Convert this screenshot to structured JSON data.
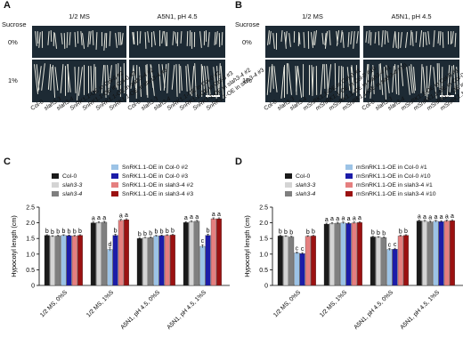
{
  "panels": {
    "A": {
      "letter": "A",
      "sucrose_label": "Sucrose",
      "col1": "1/2 MS",
      "col2": "A5N1, pH 4.5",
      "row1": "0%",
      "row2": "1%",
      "genotypes": [
        "Col-0",
        "slah3-3",
        "slah3-4",
        "SnRK1.1-OE in Col-0 #2",
        "SnRK1.1-OE in Col-0 #3",
        "SnRK1.1-OE in slah3-4 #2",
        "SnRK1.1-OE in slah3-4 #3"
      ]
    },
    "B": {
      "letter": "B",
      "sucrose_label": "Sucrose",
      "col1": "1/2 MS",
      "col2": "A5N1, pH 4.5",
      "row1": "0%",
      "row2": "1%",
      "genotypes": [
        "Col-0",
        "slah3-3",
        "slah3-4",
        "mSnRK1.1-OE in Col-0 #1",
        "mSnRK1.1-OE in Col-0 #10",
        "mSnRK1.1-OE in slah3-4 #1",
        "mSnRK1.1-OE in slah3-4 #10"
      ]
    },
    "C": {
      "letter": "C"
    },
    "D": {
      "letter": "D"
    }
  },
  "legend_C": {
    "left": [
      "Col-0",
      "slah3-3",
      "slah3-4"
    ],
    "right": [
      "SnRK1.1-OE in Col-0 #2",
      "SnRK1.1-OE in Col-0 #3",
      "SnRK1.1-OE in slah3-4 #2",
      "SnRK1.1-OE in slah3-4 #3"
    ]
  },
  "legend_D": {
    "left": [
      "Col-0",
      "slah3-3",
      "slah3-4"
    ],
    "right": [
      "mSnRK1.1-OE in Col-0 #1",
      "mSnRK1.1-OE in Col-0 #10",
      "mSnRK1.1-OE in slah3-4 #1",
      "mSnRK1.1-OE in slah3-4 #10"
    ]
  },
  "colors": [
    "#1a1a1a",
    "#d4d4d4",
    "#7f7f7f",
    "#9cc3e6",
    "#1c1ca8",
    "#e57f7f",
    "#9b1111"
  ],
  "chart_data": [
    {
      "type": "bar",
      "ylabel": "Hypocotyl length (cm)",
      "ylim": [
        0,
        2.5
      ],
      "yticks": [
        "0",
        "0.5",
        "1.0",
        "1.5",
        "2.0",
        "2.5"
      ],
      "categories": [
        "1/2 MS, 0%S",
        "1/2 MS, 1%S",
        "A5N1, pH 4.5, 0%S",
        "A5N1, pH 4.5, 1%S"
      ],
      "series": [
        {
          "name": "Col-0",
          "values": [
            1.6,
            2.0,
            1.5,
            2.01
          ]
        },
        {
          "name": "slah3-3",
          "values": [
            1.57,
            2.01,
            1.52,
            2.04
          ]
        },
        {
          "name": "slah3-4",
          "values": [
            1.58,
            2.02,
            1.53,
            2.05
          ]
        },
        {
          "name": "SnRK1.1-OE in Col-0 #2",
          "values": [
            1.6,
            1.15,
            1.58,
            1.25
          ]
        },
        {
          "name": "SnRK1.1-OE in Col-0 #3",
          "values": [
            1.59,
            1.6,
            1.59,
            1.6
          ]
        },
        {
          "name": "SnRK1.1-OE in slah3-4 #2",
          "values": [
            1.58,
            2.08,
            1.6,
            2.13
          ]
        },
        {
          "name": "SnRK1.1-OE in slah3-4 #3",
          "values": [
            1.6,
            2.1,
            1.61,
            2.13
          ]
        }
      ],
      "errors": [
        [
          0.02,
          0.03,
          0.02,
          0.03
        ],
        [
          0.02,
          0.03,
          0.02,
          0.03
        ],
        [
          0.02,
          0.03,
          0.02,
          0.03
        ],
        [
          0.02,
          0.05,
          0.02,
          0.05
        ],
        [
          0.02,
          0.04,
          0.02,
          0.04
        ],
        [
          0.02,
          0.03,
          0.02,
          0.03
        ],
        [
          0.02,
          0.03,
          0.02,
          0.03
        ]
      ],
      "letters": [
        [
          "b",
          "b",
          "b",
          "b",
          "b",
          "b",
          "b"
        ],
        [
          "a",
          "a",
          "a",
          "d",
          "b",
          "a",
          "a"
        ],
        [
          "b",
          "b",
          "b",
          "b",
          "b",
          "b",
          "b"
        ],
        [
          "a",
          "a",
          "a",
          "c",
          "b",
          "a",
          "a"
        ]
      ]
    },
    {
      "type": "bar",
      "ylabel": "Hypocotyl length (cm)",
      "ylim": [
        0,
        2.5
      ],
      "yticks": [
        "0",
        "0.5",
        "1.0",
        "1.5",
        "2.0",
        "2.5"
      ],
      "categories": [
        "1/2 MS, 0%S",
        "1/2 MS, 1%S",
        "A5N1, pH 4.5, 0%S",
        "A5N1, pH 4.5, 1%S"
      ],
      "series": [
        {
          "name": "Col-0",
          "values": [
            1.58,
            1.96,
            1.55,
            2.06
          ]
        },
        {
          "name": "slah3-3",
          "values": [
            1.57,
            1.98,
            1.54,
            2.05
          ]
        },
        {
          "name": "slah3-4",
          "values": [
            1.55,
            1.99,
            1.53,
            2.03
          ]
        },
        {
          "name": "mSnRK1.1-OE in Col-0 #1",
          "values": [
            1.04,
            2.0,
            1.15,
            2.05
          ]
        },
        {
          "name": "mSnRK1.1-OE in Col-0 #10",
          "values": [
            1.02,
            1.98,
            1.16,
            2.04
          ]
        },
        {
          "name": "mSnRK1.1-OE in slah3-4 #1",
          "values": [
            1.57,
            2.0,
            1.58,
            2.06
          ]
        },
        {
          "name": "mSnRK1.1-OE in slah3-4 #10",
          "values": [
            1.58,
            2.01,
            1.6,
            2.07
          ]
        }
      ],
      "errors": [
        [
          0.02,
          0.03,
          0.02,
          0.03
        ],
        [
          0.02,
          0.03,
          0.02,
          0.03
        ],
        [
          0.02,
          0.03,
          0.02,
          0.03
        ],
        [
          0.03,
          0.03,
          0.03,
          0.03
        ],
        [
          0.03,
          0.03,
          0.03,
          0.03
        ],
        [
          0.02,
          0.03,
          0.02,
          0.03
        ],
        [
          0.02,
          0.03,
          0.02,
          0.03
        ]
      ],
      "letters": [
        [
          "b",
          "b",
          "b",
          "c",
          "c",
          "b",
          "b"
        ],
        [
          "a",
          "a",
          "a",
          "a",
          "a",
          "a",
          "a"
        ],
        [
          "b",
          "b",
          "b",
          "c",
          "c",
          "b",
          "b"
        ],
        [
          "a",
          "a",
          "a",
          "a",
          "a",
          "a",
          "a"
        ]
      ]
    }
  ]
}
